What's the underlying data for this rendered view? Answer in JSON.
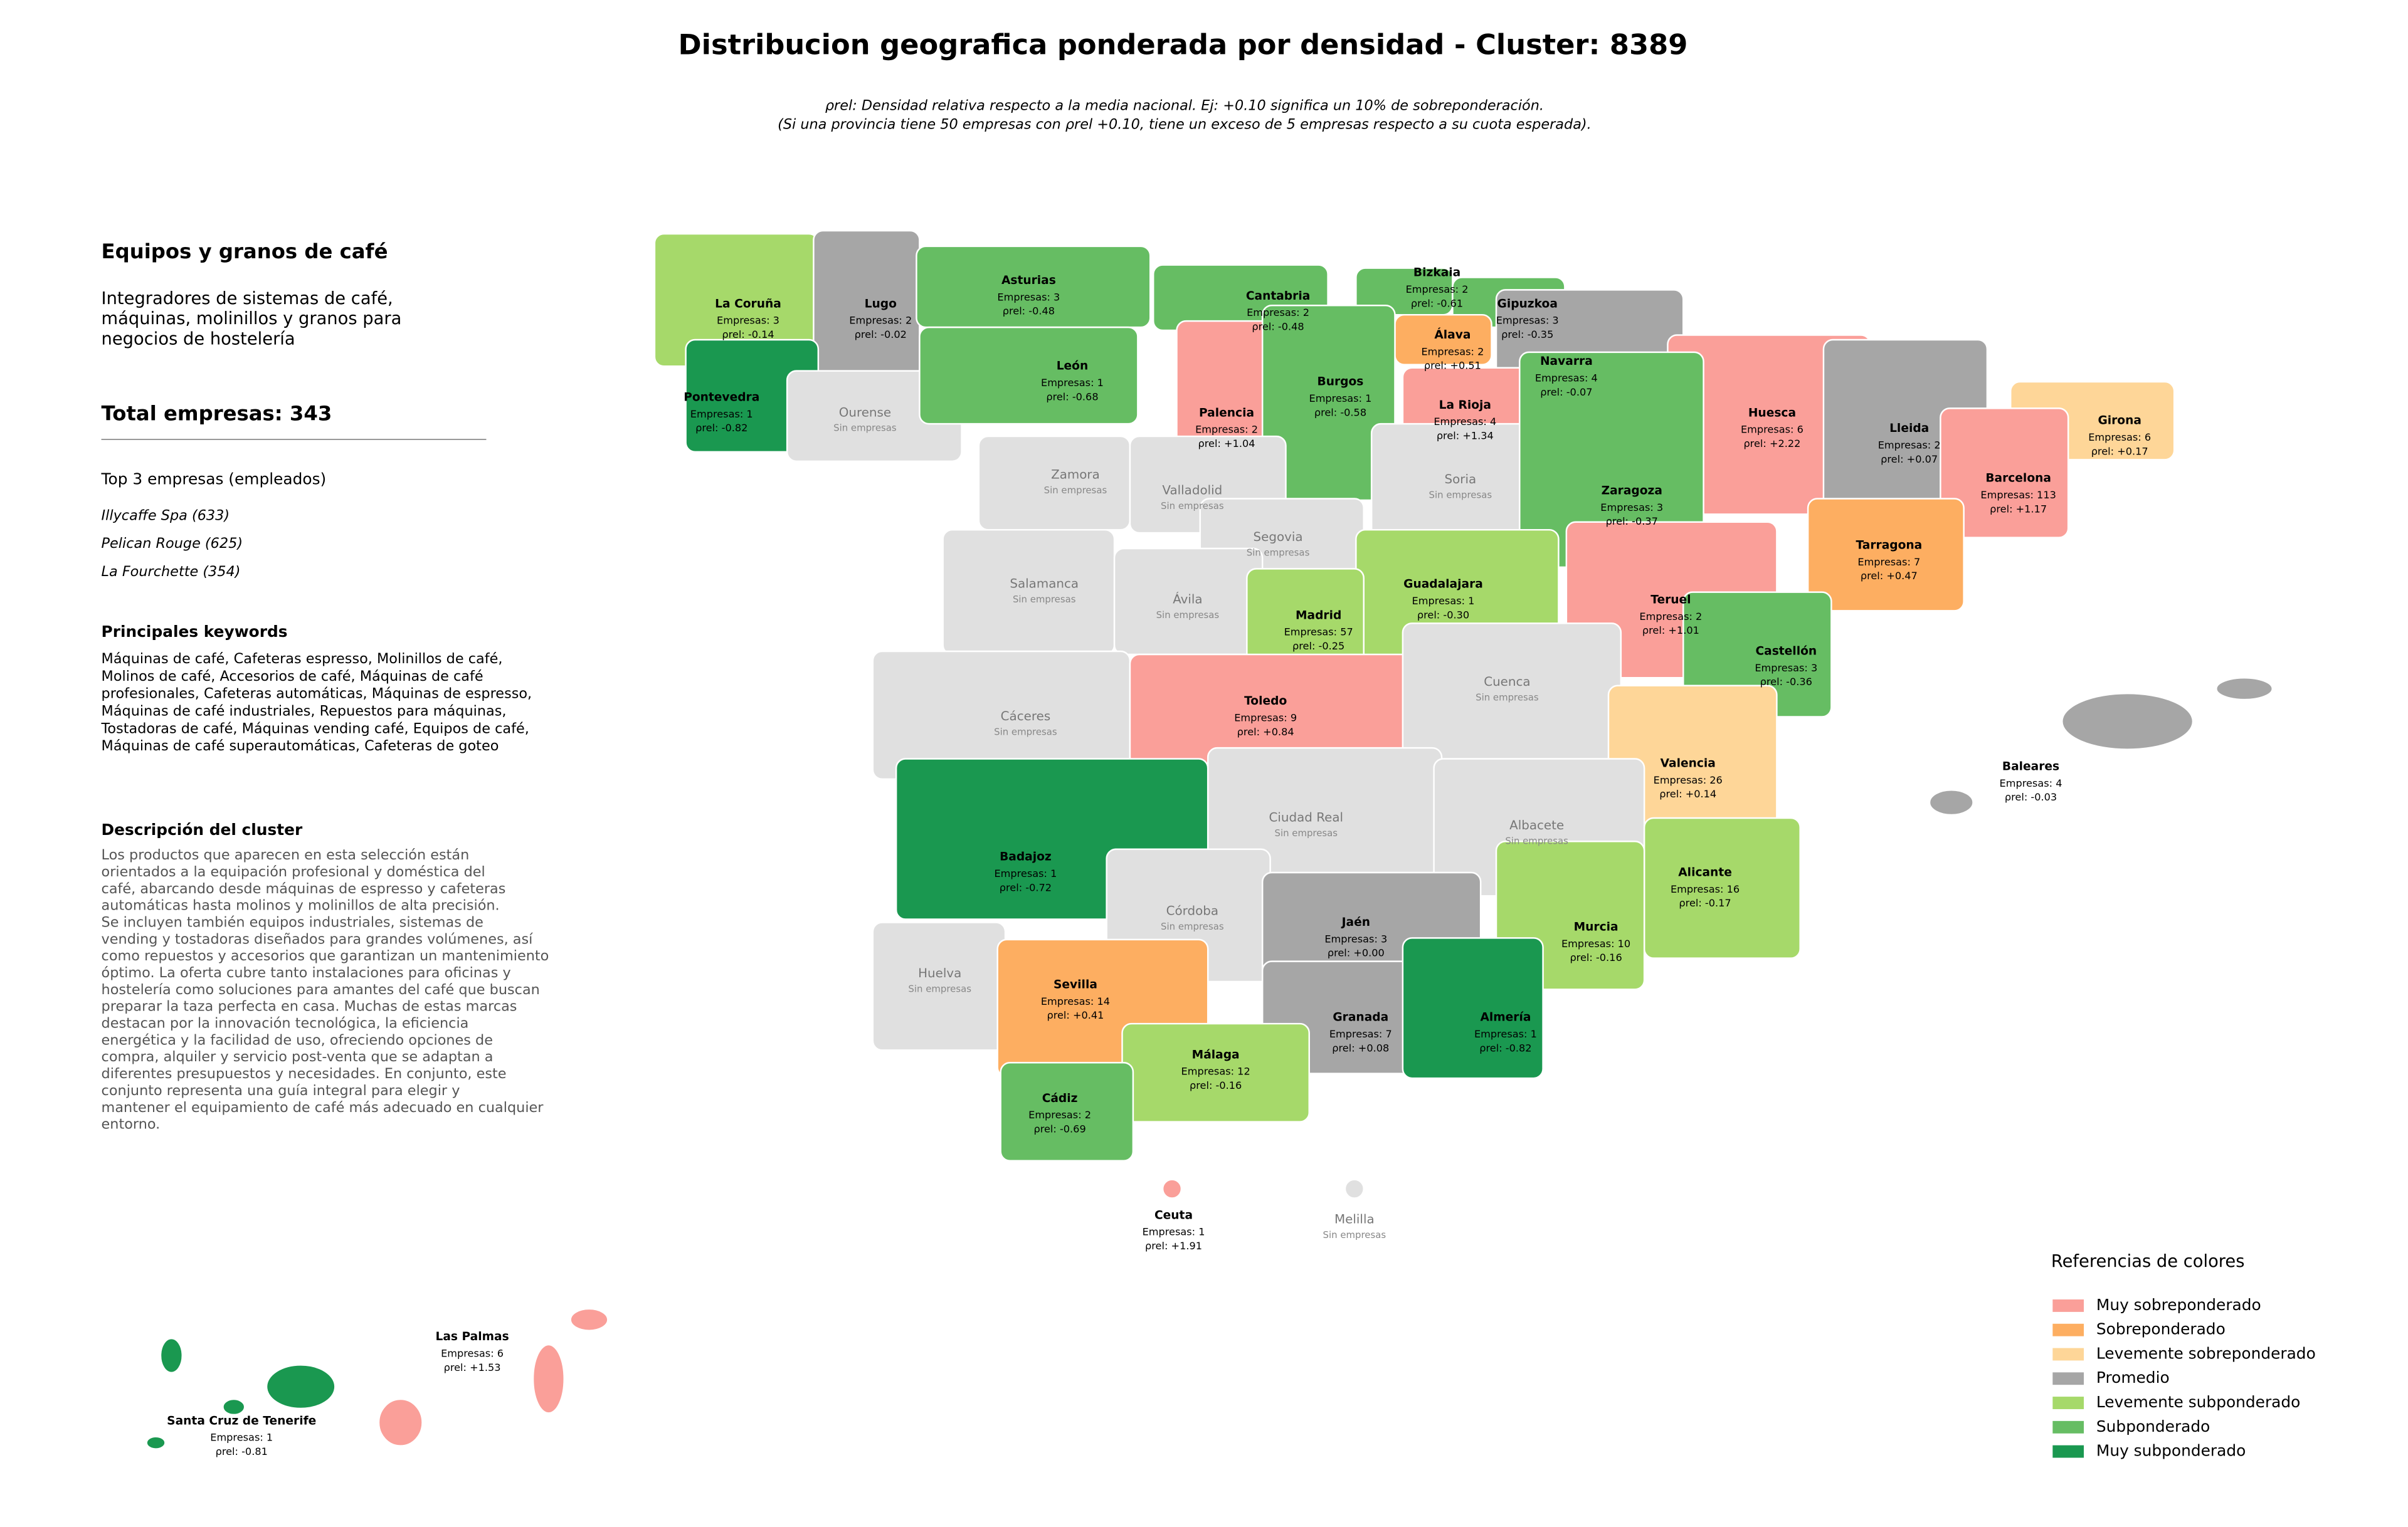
{
  "header": {
    "title": "Distribucion geografica ponderada por densidad - Cluster: 8389",
    "subtitle_lines": [
      "ρrel: Densidad relativa respecto a la media nacional. Ej: +0.10 significa un 10% de sobreponderación.",
      "(Si una provincia tiene 50 empresas con ρrel +0.10, tiene un exceso de 5 empresas respecto a su cuota esperada)."
    ]
  },
  "panel": {
    "title": "Equipos y granos de café",
    "description_lines": [
      "Integradores de sistemas de café,",
      "máquinas, molinillos y granos para",
      "negocios de hostelería"
    ],
    "total": "Total empresas: 343",
    "top_title": "Top 3 empresas (empleados)",
    "top": [
      "Illycaffe Spa (633)",
      "Pelican Rouge (625)",
      "La Fourchette (354)"
    ],
    "keywords_title": "Principales keywords",
    "keywords_lines": [
      "Máquinas de café, Cafeteras espresso, Molinillos de café,",
      "Molinos de café, Accesorios de café, Máquinas de café",
      "profesionales, Cafeteras automáticas, Máquinas de espresso,",
      "Máquinas de café industriales, Repuestos para máquinas,",
      "Tostadoras de café, Máquinas vending café, Equipos de café,",
      "Máquinas de café superautomáticas, Cafeteras de goteo"
    ],
    "cluster_title": "Descripción del cluster",
    "cluster_lines": [
      "Los productos que aparecen en esta selección están",
      "orientados a la equipación profesional y doméstica del",
      "café, abarcando desde máquinas de espresso y cafeteras",
      "automáticas hasta molinos y molinillos de alta precisión.",
      "Se incluyen también equipos industriales, sistemas de",
      "vending y tostadoras diseñados para grandes volúmenes, así",
      "como repuestos y accesorios que garantizan un mantenimiento",
      "óptimo. La oferta cubre tanto instalaciones para oficinas y",
      "hostelería como soluciones para amantes del café que buscan",
      "preparar la taza perfecta en casa. Muchas de estas marcas",
      "destacan por la innovación tecnológica, la eficiencia",
      "energética y la facilidad de uso, ofreciendo opciones de",
      "compra, alquiler y servicio post-venta que se adaptan a",
      "diferentes presupuestos y necesidades. En conjunto, este",
      "conjunto representa una guía integral para elegir y",
      "mantener el equipamiento de café más adecuado en cualquier",
      "entorno."
    ]
  },
  "provinces": [
    {
      "name": "La Coruña",
      "empresas": "Empresas: 3",
      "rho": "ρrel: -0.14",
      "color": "#a6d96a"
    },
    {
      "name": "Lugo",
      "empresas": "Empresas: 2",
      "rho": "ρrel: -0.02",
      "color": "#a6a6a6"
    },
    {
      "name": "Asturias",
      "empresas": "Empresas: 3",
      "rho": "ρrel: -0.48",
      "color": "#66bd63"
    },
    {
      "name": "Cantabria",
      "empresas": "Empresas: 2",
      "rho": "ρrel: -0.48",
      "color": "#66bd63"
    },
    {
      "name": "Bizkaia",
      "empresas": "Empresas: 2",
      "rho": "ρrel: -0.61",
      "color": "#66bd63"
    },
    {
      "name": "Gipuzkoa",
      "empresas": "Empresas: 3",
      "rho": "ρrel: -0.35",
      "color": "#66bd63"
    },
    {
      "name": "Álava",
      "empresas": "Empresas: 2",
      "rho": "ρrel: +0.51",
      "color": "#fdae61"
    },
    {
      "name": "Navarra",
      "empresas": "Empresas: 4",
      "rho": "ρrel: -0.07",
      "color": "#a6a6a6"
    },
    {
      "name": "La Rioja",
      "empresas": "Empresas: 4",
      "rho": "ρrel: +1.34",
      "color": "#fa9f99"
    },
    {
      "name": "Pontevedra",
      "empresas": "Empresas: 1",
      "rho": "ρrel: -0.82",
      "color": "#1a9850"
    },
    {
      "name": "Ourense",
      "note": "Sin empresas",
      "color": "#e0e0e0"
    },
    {
      "name": "León",
      "empresas": "Empresas: 1",
      "rho": "ρrel: -0.68",
      "color": "#66bd63"
    },
    {
      "name": "Palencia",
      "empresas": "Empresas: 2",
      "rho": "ρrel: +1.04",
      "color": "#fa9f99"
    },
    {
      "name": "Burgos",
      "empresas": "Empresas: 1",
      "rho": "ρrel: -0.58",
      "color": "#66bd63"
    },
    {
      "name": "Huesca",
      "empresas": "Empresas: 6",
      "rho": "ρrel: +2.22",
      "color": "#fa9f99"
    },
    {
      "name": "Lleida",
      "empresas": "Empresas: 2",
      "rho": "ρrel: +0.07",
      "color": "#a6a6a6"
    },
    {
      "name": "Girona",
      "empresas": "Empresas: 6",
      "rho": "ρrel: +0.17",
      "color": "#fed698"
    },
    {
      "name": "Barcelona",
      "empresas": "Empresas: 113",
      "rho": "ρrel: +1.17",
      "color": "#fa9f99"
    },
    {
      "name": "Zamora",
      "note": "Sin empresas",
      "color": "#e0e0e0"
    },
    {
      "name": "Valladolid",
      "note": "Sin empresas",
      "color": "#e0e0e0"
    },
    {
      "name": "Soria",
      "note": "Sin empresas",
      "color": "#e0e0e0"
    },
    {
      "name": "Zaragoza",
      "empresas": "Empresas: 3",
      "rho": "ρrel: -0.37",
      "color": "#66bd63"
    },
    {
      "name": "Segovia",
      "note": "Sin empresas",
      "color": "#e0e0e0"
    },
    {
      "name": "Salamanca",
      "note": "Sin empresas",
      "color": "#e0e0e0"
    },
    {
      "name": "Ávila",
      "note": "Sin empresas",
      "color": "#e0e0e0"
    },
    {
      "name": "Guadalajara",
      "empresas": "Empresas: 1",
      "rho": "ρrel: -0.30",
      "color": "#a6d96a"
    },
    {
      "name": "Madrid",
      "empresas": "Empresas: 57",
      "rho": "ρrel: -0.25",
      "color": "#a6d96a"
    },
    {
      "name": "Teruel",
      "empresas": "Empresas: 2",
      "rho": "ρrel: +1.01",
      "color": "#fa9f99"
    },
    {
      "name": "Tarragona",
      "empresas": "Empresas: 7",
      "rho": "ρrel: +0.47",
      "color": "#fdae61"
    },
    {
      "name": "Castellón",
      "empresas": "Empresas: 3",
      "rho": "ρrel: -0.36",
      "color": "#66bd63"
    },
    {
      "name": "Cáceres",
      "note": "Sin empresas",
      "color": "#e0e0e0"
    },
    {
      "name": "Toledo",
      "empresas": "Empresas: 9",
      "rho": "ρrel: +0.84",
      "color": "#fa9f99"
    },
    {
      "name": "Cuenca",
      "note": "Sin empresas",
      "color": "#e0e0e0"
    },
    {
      "name": "Valencia",
      "empresas": "Empresas: 26",
      "rho": "ρrel: +0.14",
      "color": "#fed698"
    },
    {
      "name": "Baleares",
      "empresas": "Empresas: 4",
      "rho": "ρrel: -0.03",
      "color": "#a6a6a6"
    },
    {
      "name": "Badajoz",
      "empresas": "Empresas: 1",
      "rho": "ρrel: -0.72",
      "color": "#1a9850"
    },
    {
      "name": "Ciudad Real",
      "note": "Sin empresas",
      "color": "#e0e0e0"
    },
    {
      "name": "Albacete",
      "note": "Sin empresas",
      "color": "#e0e0e0"
    },
    {
      "name": "Alicante",
      "empresas": "Empresas: 16",
      "rho": "ρrel: -0.17",
      "color": "#a6d96a"
    },
    {
      "name": "Córdoba",
      "note": "Sin empresas",
      "color": "#e0e0e0"
    },
    {
      "name": "Jaén",
      "empresas": "Empresas: 3",
      "rho": "ρrel: +0.00",
      "color": "#a6a6a6"
    },
    {
      "name": "Murcia",
      "empresas": "Empresas: 10",
      "rho": "ρrel: -0.16",
      "color": "#a6d96a"
    },
    {
      "name": "Huelva",
      "note": "Sin empresas",
      "color": "#e0e0e0"
    },
    {
      "name": "Sevilla",
      "empresas": "Empresas: 14",
      "rho": "ρrel: +0.41",
      "color": "#fdae61"
    },
    {
      "name": "Granada",
      "empresas": "Empresas: 7",
      "rho": "ρrel: +0.08",
      "color": "#a6a6a6"
    },
    {
      "name": "Almería",
      "empresas": "Empresas: 1",
      "rho": "ρrel: -0.82",
      "color": "#1a9850"
    },
    {
      "name": "Málaga",
      "empresas": "Empresas: 12",
      "rho": "ρrel: -0.16",
      "color": "#a6d96a"
    },
    {
      "name": "Cádiz",
      "empresas": "Empresas: 2",
      "rho": "ρrel: -0.69",
      "color": "#66bd63"
    },
    {
      "name": "Ceuta",
      "empresas": "Empresas: 1",
      "rho": "ρrel: +1.91",
      "color": "#fa9f99"
    },
    {
      "name": "Melilla",
      "note": "Sin empresas",
      "color": "#e0e0e0"
    },
    {
      "name": "Las Palmas",
      "empresas": "Empresas: 6",
      "rho": "ρrel: +1.53",
      "color": "#fa9f99"
    },
    {
      "name": "Santa Cruz de Tenerife",
      "empresas": "Empresas: 1",
      "rho": "ρrel: -0.81",
      "color": "#1a9850"
    }
  ],
  "legend": {
    "title": "Referencias de colores",
    "items": [
      {
        "label": "Muy sobreponderado",
        "color": "#fa9f99"
      },
      {
        "label": "Sobreponderado",
        "color": "#fdae61"
      },
      {
        "label": "Levemente sobreponderado",
        "color": "#fed698"
      },
      {
        "label": "Promedio",
        "color": "#a6a6a6"
      },
      {
        "label": "Levemente subponderado",
        "color": "#a6d96a"
      },
      {
        "label": "Subponderado",
        "color": "#66bd63"
      },
      {
        "label": "Muy subponderado",
        "color": "#1a9850"
      }
    ]
  }
}
